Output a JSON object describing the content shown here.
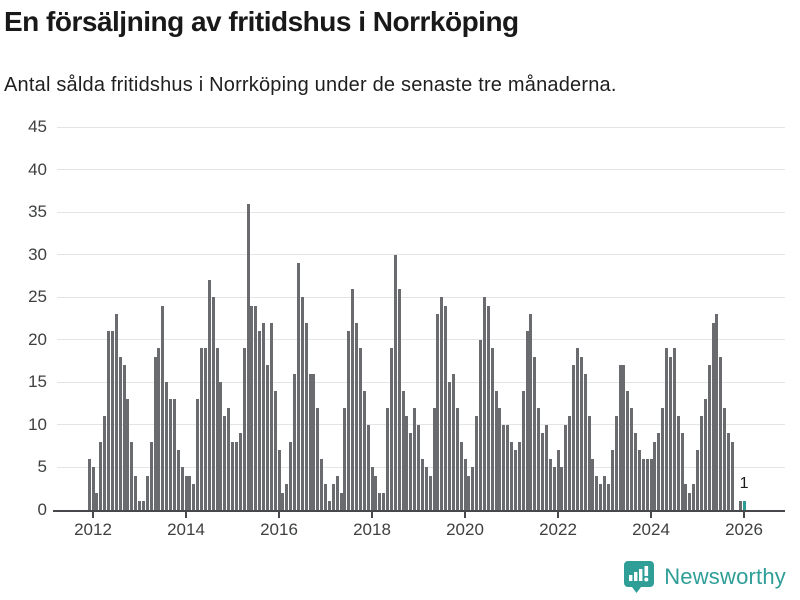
{
  "header": {
    "title": "En försäljning av fritidshus i Norrköping",
    "subtitle": "Antal sålda fritidshus i Norrköping under de senaste tre månaderna."
  },
  "chart_data": {
    "type": "bar",
    "title": "En försäljning av fritidshus i Norrköping",
    "subtitle": "Antal sålda fritidshus i Norrköping under de senaste tre månaderna.",
    "x_start": "2011-12",
    "x_end": "2026-01",
    "x_interval": "month",
    "values": [
      6,
      5,
      2,
      8,
      11,
      21,
      21,
      23,
      18,
      17,
      13,
      8,
      4,
      1,
      1,
      4,
      8,
      18,
      19,
      24,
      15,
      13,
      13,
      7,
      5,
      4,
      4,
      3,
      13,
      19,
      19,
      27,
      25,
      19,
      15,
      11,
      12,
      8,
      8,
      9,
      19,
      36,
      24,
      24,
      21,
      22,
      17,
      22,
      14,
      7,
      2,
      3,
      8,
      16,
      29,
      25,
      22,
      16,
      16,
      12,
      6,
      3,
      1,
      3,
      4,
      2,
      12,
      21,
      26,
      22,
      19,
      14,
      10,
      5,
      4,
      2,
      2,
      12,
      19,
      30,
      26,
      14,
      11,
      9,
      12,
      10,
      6,
      5,
      4,
      12,
      23,
      25,
      24,
      15,
      16,
      12,
      8,
      6,
      4,
      5,
      11,
      20,
      25,
      24,
      19,
      14,
      12,
      10,
      10,
      8,
      7,
      8,
      14,
      21,
      23,
      18,
      12,
      9,
      10,
      6,
      5,
      7,
      5,
      10,
      11,
      17,
      19,
      18,
      16,
      11,
      6,
      4,
      3,
      4,
      3,
      7,
      11,
      17,
      17,
      14,
      12,
      9,
      7,
      6,
      6,
      6,
      8,
      9,
      12,
      19,
      18,
      19,
      11,
      9,
      3,
      2,
      3,
      7,
      11,
      13,
      17,
      22,
      23,
      18,
      12,
      9,
      8,
      0,
      1,
      1
    ],
    "highlight_last": 1,
    "annotation": {
      "text": "1",
      "applies_to": "last-bar"
    },
    "ylim": [
      0,
      45
    ],
    "yticks": [
      0,
      5,
      10,
      15,
      20,
      25,
      30,
      35,
      40,
      45
    ],
    "xticks": [
      2012,
      2014,
      2016,
      2018,
      2020,
      2022,
      2024,
      2026
    ],
    "grid": true,
    "legend": false,
    "colors": {
      "bar": "#6a6b6f",
      "highlight": "#2b9c93",
      "grid": "#e4e4e5",
      "axis": "#47484c",
      "tick_text": "#3f4040",
      "title_text": "#191919",
      "annotation_text": "#1b1b1b",
      "brand": "#2f9e97"
    }
  },
  "footer": {
    "brand": "Newsworthy"
  }
}
